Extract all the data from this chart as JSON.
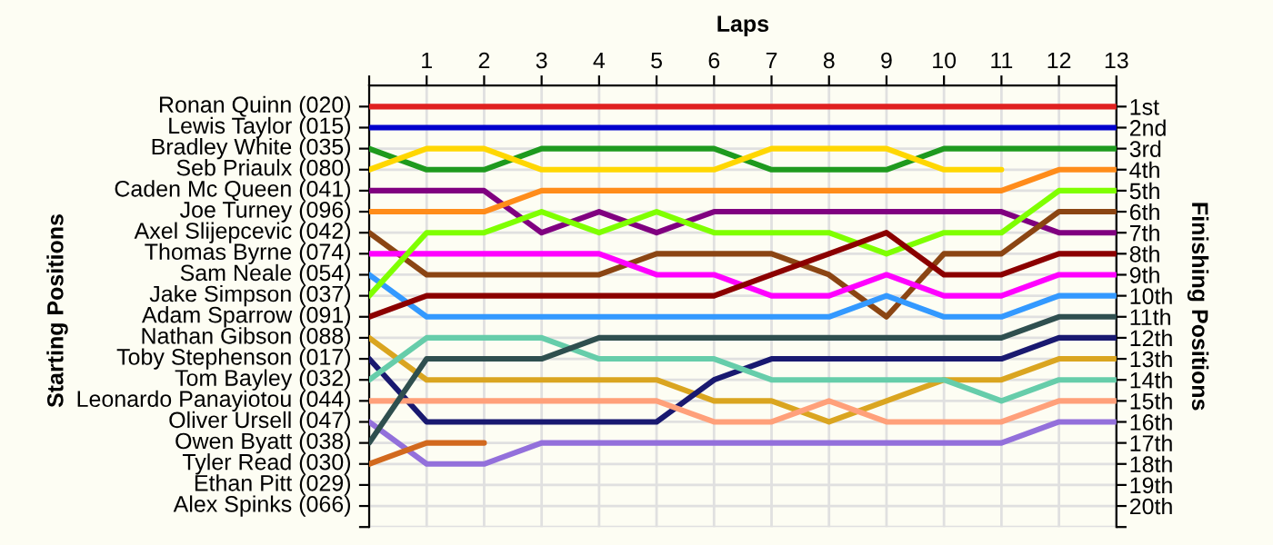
{
  "chart_data": {
    "type": "line",
    "xlabel": "Laps",
    "ylabel": "Finishing Positions",
    "annotations": [
      "Starting Positions",
      "Ethan Pitt (029)",
      "Alex Spinks (066)"
    ],
    "x": [
      0,
      1,
      2,
      3,
      4,
      5,
      6,
      7,
      8,
      9,
      10,
      11,
      12,
      13
    ],
    "xlim": [
      0,
      13
    ],
    "xticks": [
      {
        "value": 0,
        "label": null
      },
      1,
      2,
      3,
      4,
      5,
      6,
      7,
      8,
      9,
      10,
      11,
      12,
      13
    ],
    "ylim": [
      21,
      0
    ],
    "yticks": [
      {
        "value": 1,
        "label": "1st"
      },
      {
        "value": 2,
        "label": "2nd"
      },
      {
        "value": 3,
        "label": "3rd"
      },
      {
        "value": 4,
        "label": "4th"
      },
      {
        "value": 5,
        "label": "5th"
      },
      {
        "value": 6,
        "label": "6th"
      },
      {
        "value": 7,
        "label": "7th"
      },
      {
        "value": 8,
        "label": "8th"
      },
      {
        "value": 9,
        "label": "9th"
      },
      {
        "value": 10,
        "label": "10th"
      },
      {
        "value": 11,
        "label": "11th"
      },
      {
        "value": 12,
        "label": "12th"
      },
      {
        "value": 13,
        "label": "13th"
      },
      {
        "value": 14,
        "label": "14th"
      },
      {
        "value": 15,
        "label": "15th"
      },
      {
        "value": 16,
        "label": "16th"
      },
      {
        "value": 17,
        "label": "17th"
      },
      {
        "value": 18,
        "label": "18th"
      },
      {
        "value": 19,
        "label": "19th"
      },
      {
        "value": 20,
        "label": "20th"
      },
      {
        "value": 21,
        "label": null
      }
    ],
    "grid": true,
    "line_style": "solid",
    "marker": "none",
    "series": [
      {
        "name": "Ronan Quinn (020)",
        "color": "#e02020",
        "values": [
          1,
          1,
          1,
          1,
          1,
          1,
          1,
          1,
          1,
          1,
          1,
          1,
          1,
          1
        ]
      },
      {
        "name": "Lewis Taylor (015)",
        "color": "#0000cc",
        "values": [
          2,
          2,
          2,
          2,
          2,
          2,
          2,
          2,
          2,
          2,
          2,
          2,
          2,
          2
        ]
      },
      {
        "name": "Bradley White (035)",
        "color": "#1e9a1e",
        "values": [
          3,
          4,
          4,
          3,
          3,
          3,
          3,
          4,
          4,
          4,
          3,
          3,
          3,
          3
        ]
      },
      {
        "name": "Seb Priaulx (080)",
        "color": "#ffd700",
        "values": [
          4,
          3,
          3,
          4,
          4,
          4,
          4,
          3,
          3,
          3,
          4,
          4,
          null,
          null
        ]
      },
      {
        "name": "Caden Mc Queen (041)",
        "color": "#800080",
        "values": [
          5,
          5,
          5,
          7,
          6,
          7,
          6,
          6,
          6,
          6,
          6,
          6,
          7,
          7
        ]
      },
      {
        "name": "Joe Turney (096)",
        "color": "#ff8c1a",
        "values": [
          6,
          6,
          6,
          5,
          5,
          5,
          5,
          5,
          5,
          5,
          5,
          5,
          4,
          4
        ]
      },
      {
        "name": "Axel Slijepcevic (042)",
        "color": "#8b4513",
        "values": [
          7,
          9,
          9,
          9,
          9,
          8,
          8,
          8,
          9,
          11,
          8,
          8,
          6,
          6
        ]
      },
      {
        "name": "Thomas Byrne (074)",
        "color": "#ff00ff",
        "values": [
          8,
          8,
          8,
          8,
          8,
          9,
          9,
          10,
          10,
          9,
          10,
          10,
          9,
          9
        ]
      },
      {
        "name": "Sam Neale (054)",
        "color": "#3399ff",
        "values": [
          9,
          11,
          11,
          11,
          11,
          11,
          11,
          11,
          11,
          10,
          11,
          11,
          10,
          10
        ]
      },
      {
        "name": "Jake Simpson (037)",
        "color": "#7fff00",
        "values": [
          10,
          7,
          7,
          6,
          7,
          6,
          7,
          7,
          7,
          8,
          7,
          7,
          5,
          5
        ]
      },
      {
        "name": "Adam Sparrow (091)",
        "color": "#8b0000",
        "values": [
          11,
          10,
          10,
          10,
          10,
          10,
          10,
          9,
          8,
          7,
          9,
          9,
          8,
          8
        ]
      },
      {
        "name": "Nathan Gibson (088)",
        "color": "#daa520",
        "values": [
          12,
          14,
          14,
          14,
          14,
          14,
          15,
          15,
          16,
          15,
          14,
          14,
          13,
          13
        ]
      },
      {
        "name": "Toby Stephenson (017)",
        "color": "#191970",
        "values": [
          13,
          16,
          16,
          16,
          16,
          16,
          14,
          13,
          13,
          13,
          13,
          13,
          12,
          12
        ]
      },
      {
        "name": "Tom Bayley (032)",
        "color": "#66cdaa",
        "values": [
          14,
          12,
          12,
          12,
          13,
          13,
          13,
          14,
          14,
          14,
          14,
          15,
          14,
          14
        ]
      },
      {
        "name": "Leonardo Panayiotou (044)",
        "color": "#ffa07a",
        "values": [
          15,
          15,
          15,
          15,
          15,
          15,
          16,
          16,
          15,
          16,
          16,
          16,
          15,
          15
        ]
      },
      {
        "name": "Oliver Ursell (047)",
        "color": "#9370db",
        "values": [
          16,
          18,
          18,
          17,
          17,
          17,
          17,
          17,
          17,
          17,
          17,
          17,
          16,
          16
        ]
      },
      {
        "name": "Owen Byatt (038)",
        "color": "#2f4f4f",
        "values": [
          17,
          13,
          13,
          13,
          12,
          12,
          12,
          12,
          12,
          12,
          12,
          12,
          11,
          11
        ]
      },
      {
        "name": "Tyler Read (030)",
        "color": "#d2691e",
        "values": [
          18,
          17,
          17,
          null,
          null,
          null,
          null,
          null,
          null,
          null,
          null,
          null,
          null,
          null
        ]
      }
    ]
  }
}
